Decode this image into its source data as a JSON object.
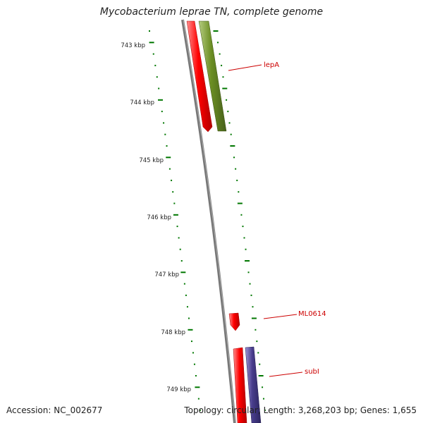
{
  "title": "Mycobacterium leprae TN, complete genome",
  "accession": "Accession: NC_002677",
  "summary": "Topology: circular; Length: 3,268,203 bp; Genes: 1,655",
  "kbp_labels": [
    "743 kbp",
    "744 kbp",
    "745 kbp",
    "746 kbp",
    "747 kbp",
    "748 kbp",
    "749 kbp"
  ],
  "genes": [
    {
      "name": "lepA",
      "color": "#ff0000",
      "track": "forward-outer"
    },
    {
      "name": "lepA",
      "color": "#6b8e23",
      "track": "cds"
    },
    {
      "name": "ML0614",
      "color": "#ff0000",
      "track": "forward-outer"
    },
    {
      "name": "subI",
      "color": "#ff0000",
      "track": "forward-outer"
    },
    {
      "name": "subI",
      "color": "#483d8b",
      "track": "cds"
    }
  ],
  "gene_labels": [
    "lepA",
    "ML0614",
    "subI"
  ],
  "colors": {
    "backbone": "#777777",
    "ticks": "#007700",
    "gene_red": "#ff0000",
    "gene_green": "#6b8e23",
    "gene_purple": "#483d8b",
    "label": "#cc0000"
  }
}
